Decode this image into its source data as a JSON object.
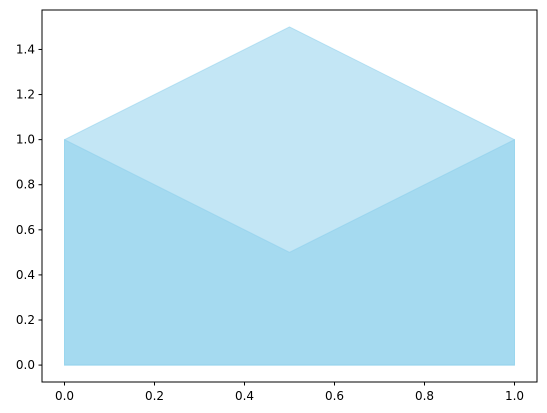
{
  "chart_data": {
    "type": "area",
    "x": [
      0,
      0.5,
      1
    ],
    "series": [
      {
        "color": "#87ceeb",
        "values": [
          1,
          1.5,
          1
        ]
      },
      {
        "color": "#87ceeb",
        "values": [
          1,
          0.5,
          1
        ]
      }
    ],
    "alpha": 0.5,
    "xlim": [
      -0.05,
      1.05
    ],
    "ylim": [
      -0.075,
      1.575
    ],
    "xticks": [
      {
        "value": 0,
        "label": "0.0"
      },
      {
        "value": 0.2,
        "label": "0.2"
      },
      {
        "value": 0.4,
        "label": "0.4"
      },
      {
        "value": 0.6,
        "label": "0.6"
      },
      {
        "value": 0.8,
        "label": "0.8"
      },
      {
        "value": 1,
        "label": "1.0"
      }
    ],
    "yticks": [
      {
        "value": 0,
        "label": "0.0"
      },
      {
        "value": 0.2,
        "label": "0.2"
      },
      {
        "value": 0.4,
        "label": "0.4"
      },
      {
        "value": 0.6,
        "label": "0.6"
      },
      {
        "value": 0.8,
        "label": "0.8"
      },
      {
        "value": 1,
        "label": "1.0"
      },
      {
        "value": 1.2,
        "label": "1.2"
      },
      {
        "value": 1.4,
        "label": "1.4"
      }
    ],
    "grid": false
  }
}
